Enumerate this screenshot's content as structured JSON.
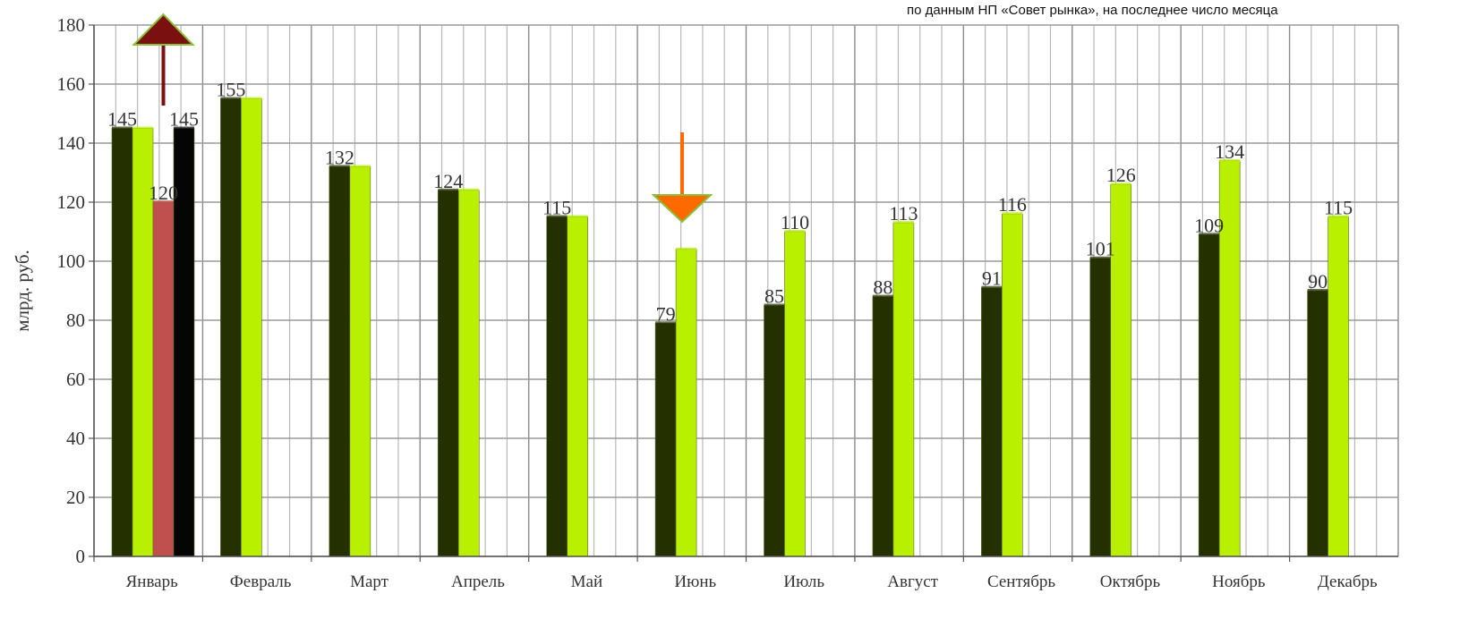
{
  "note": "по данным НП «Совет рынка», на последнее число месяца",
  "chart_data": {
    "type": "bar",
    "ylabel": "млрд. руб.",
    "ylim": [
      0,
      180
    ],
    "yticks": [
      0,
      20,
      40,
      60,
      80,
      100,
      120,
      140,
      160,
      180
    ],
    "grid": true,
    "categories": [
      "Январь",
      "Февраль",
      "Март",
      "Апрель",
      "Май",
      "Июнь",
      "Июль",
      "Август",
      "Сентябрь",
      "Октябрь",
      "Ноябрь",
      "Декабрь"
    ],
    "series": [
      {
        "values": [
          145,
          155,
          132,
          124,
          115,
          79,
          85,
          88,
          91,
          101,
          109,
          90
        ],
        "color": "#253000"
      },
      {
        "values": [
          145,
          155,
          132,
          124,
          115,
          104,
          110,
          113,
          116,
          126,
          134,
          115
        ],
        "color": "#b8f000"
      },
      {
        "values": [
          120,
          null,
          null,
          null,
          null,
          null,
          null,
          null,
          null,
          null,
          null,
          null
        ],
        "color": "#c0504d"
      },
      {
        "values": [
          145,
          null,
          null,
          null,
          null,
          null,
          null,
          null,
          null,
          null,
          null,
          null
        ],
        "color": "#050505"
      }
    ],
    "data_labels": [
      {
        "category": "Январь",
        "series": 0,
        "text": "145"
      },
      {
        "category": "Январь",
        "series": 2,
        "text": "120"
      },
      {
        "category": "Январь",
        "series": 3,
        "text": "145"
      },
      {
        "category": "Февраль",
        "series": 0,
        "text": "155"
      },
      {
        "category": "Март",
        "series": 0,
        "text": "132"
      },
      {
        "category": "Апрель",
        "series": 0,
        "text": "124"
      },
      {
        "category": "Май",
        "series": 0,
        "text": "115"
      },
      {
        "category": "Июнь",
        "series": 0,
        "text": "79"
      },
      {
        "category": "Июль",
        "series": 0,
        "text": "85"
      },
      {
        "category": "Июль",
        "series": 1,
        "text": "110"
      },
      {
        "category": "Август",
        "series": 0,
        "text": "88"
      },
      {
        "category": "Август",
        "series": 1,
        "text": "113"
      },
      {
        "category": "Сентябрь",
        "series": 0,
        "text": "91"
      },
      {
        "category": "Сентябрь",
        "series": 1,
        "text": "116"
      },
      {
        "category": "Октябрь",
        "series": 0,
        "text": "101"
      },
      {
        "category": "Октябрь",
        "series": 1,
        "text": "126"
      },
      {
        "category": "Ноябрь",
        "series": 0,
        "text": "109"
      },
      {
        "category": "Ноябрь",
        "series": 1,
        "text": "134"
      },
      {
        "category": "Декабрь",
        "series": 0,
        "text": "90"
      },
      {
        "category": "Декабрь",
        "series": 1,
        "text": "115"
      }
    ],
    "arrows": [
      {
        "category": "Январь",
        "direction": "up",
        "color": "#7b1010"
      },
      {
        "category": "Июнь",
        "direction": "down",
        "color": "#ff6a00"
      }
    ]
  }
}
